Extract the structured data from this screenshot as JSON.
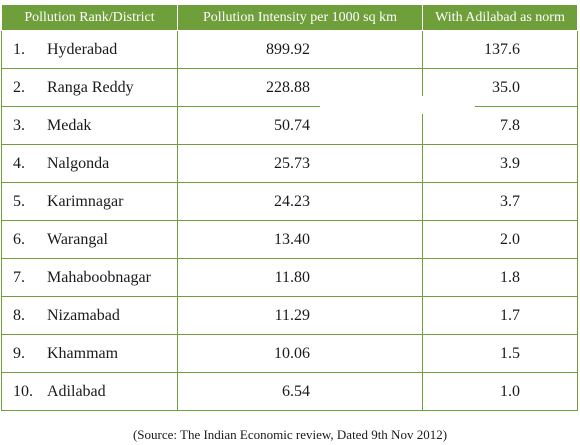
{
  "table": {
    "headers": [
      "Pollution Rank/District",
      "Pollution Intensity per 1000 sq km",
      "With Adilabad as norm"
    ],
    "rows": [
      {
        "rank": "1.",
        "district": "Hyderabad",
        "intensity": "899.92",
        "norm": "137.6"
      },
      {
        "rank": "2.",
        "district": "Ranga Reddy",
        "intensity": "228.88",
        "norm": "35.0"
      },
      {
        "rank": "3.",
        "district": "Medak",
        "intensity": "50.74",
        "norm": "7.8"
      },
      {
        "rank": "4.",
        "district": "Nalgonda",
        "intensity": "25.73",
        "norm": "3.9"
      },
      {
        "rank": "5.",
        "district": "Karimnagar",
        "intensity": "24.23",
        "norm": "3.7"
      },
      {
        "rank": "6.",
        "district": "Warangal",
        "intensity": "13.40",
        "norm": "2.0"
      },
      {
        "rank": "7.",
        "district": "Mahaboobnagar",
        "intensity": "11.80",
        "norm": "1.8"
      },
      {
        "rank": "8.",
        "district": "Nizamabad",
        "intensity": "11.29",
        "norm": "1.7"
      },
      {
        "rank": "9.",
        "district": "Khammam",
        "intensity": "10.06",
        "norm": "1.5"
      },
      {
        "rank": "10.",
        "district": "Adilabad",
        "intensity": "6.54",
        "norm": "1.0"
      }
    ]
  },
  "source": "(Source: The Indian Economic review, Dated 9th Nov 2012)",
  "colors": {
    "header_bg": "#6f9f3b",
    "border": "#6f9f3b",
    "header_text": "#ffffff"
  }
}
